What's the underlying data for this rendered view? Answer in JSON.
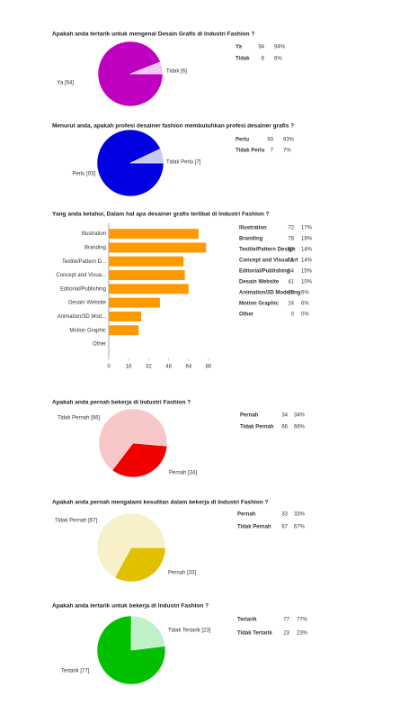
{
  "chart_data": [
    {
      "type": "pie",
      "title": "Apakah anda tertarik untuk mengenal Desain Grafis di Industri Fashion ?",
      "categories": [
        "Ya",
        "Tidak"
      ],
      "values": [
        94,
        6
      ],
      "value_labels": [
        "Ya [94]",
        "Tidak [6]"
      ],
      "colors": [
        "#c000c0",
        "#f0c8f0"
      ],
      "table": [
        [
          "Ya",
          "94",
          "94%"
        ],
        [
          "Tidak",
          "6",
          "6%"
        ]
      ]
    },
    {
      "type": "pie",
      "title": "Menurut anda, apakah profesi desainer fashion membutuhkan profesi desainer grafis ?",
      "categories": [
        "Perlu",
        "Tidak Perlu"
      ],
      "values": [
        93,
        7
      ],
      "value_labels": [
        "Perlu [93]",
        "Tidak Perlu [7]"
      ],
      "colors": [
        "#0000e0",
        "#c8c8f0"
      ],
      "table": [
        [
          "Perlu",
          "93",
          "93%"
        ],
        [
          "Tidak Perlu",
          "7",
          "7%"
        ]
      ]
    },
    {
      "type": "hbar",
      "title": "Yang anda ketahui, Dalam hal apa desainer grafis terlibat di Industri Fashion ?",
      "categories": [
        "Illustration",
        "Branding",
        "Textile/Pattern D...",
        "Concept and Visua...",
        "Editorial/Publishing",
        "Desain Website",
        "Animation/3D Mod...",
        "Motion Graphic",
        "Other"
      ],
      "values": [
        72,
        78,
        60,
        61,
        64,
        41,
        26,
        24,
        0
      ],
      "color": "#ff9900",
      "xlim": [
        0,
        80
      ],
      "xticks": [
        0,
        16,
        32,
        48,
        64,
        80
      ],
      "table": [
        [
          "Illustration",
          "72",
          "17%"
        ],
        [
          "Branding",
          "78",
          "18%"
        ],
        [
          "Textile/Pattern Design",
          "60",
          "14%"
        ],
        [
          "Concept and Visual Art",
          "61",
          "14%"
        ],
        [
          "Editorial/Publishing",
          "64",
          "15%"
        ],
        [
          "Desain Website",
          "41",
          "10%"
        ],
        [
          "Animation/3D Modelling",
          "26",
          "6%"
        ],
        [
          "Motion Graphic",
          "24",
          "6%"
        ],
        [
          "Other",
          "0",
          "0%"
        ]
      ]
    },
    {
      "type": "pie",
      "title": "Apakah anda pernah bekerja di Industri Fashion ?",
      "categories": [
        "Pernah",
        "Tidak Pernah"
      ],
      "values": [
        34,
        66
      ],
      "value_labels": [
        "Pernah [34]",
        "Tidak Pernah [66]"
      ],
      "colors": [
        "#f00000",
        "#f8c8c8"
      ],
      "table": [
        [
          "Pernah",
          "34",
          "34%"
        ],
        [
          "Tidak Pernah",
          "66",
          "66%"
        ]
      ]
    },
    {
      "type": "pie",
      "title": "Apakah anda pernah mengalami kesulitan dalam bekerja di Industri Fashion ?",
      "categories": [
        "Pernah",
        "Tidak Pernah"
      ],
      "values": [
        33,
        67
      ],
      "value_labels": [
        "Pernah [33]",
        "Tidak Pernah [67]"
      ],
      "colors": [
        "#e0c000",
        "#f8f0c8"
      ],
      "table": [
        [
          "Pernah",
          "33",
          "33%"
        ],
        [
          "Tidak Pernah",
          "67",
          "67%"
        ]
      ]
    },
    {
      "type": "pie",
      "title": "Apakah anda tertarik untuk bekerja di Industri Fashion ?",
      "categories": [
        "Tertarik",
        "Tidak Tertarik"
      ],
      "values": [
        77,
        23
      ],
      "value_labels": [
        "Tertarik [77]",
        "Tidak Tertarik [23]"
      ],
      "colors": [
        "#00c000",
        "#c0f0c8"
      ],
      "table": [
        [
          "Tertarik",
          "77",
          "77%"
        ],
        [
          "Tidak Tertarik",
          "23",
          "23%"
        ]
      ]
    }
  ]
}
